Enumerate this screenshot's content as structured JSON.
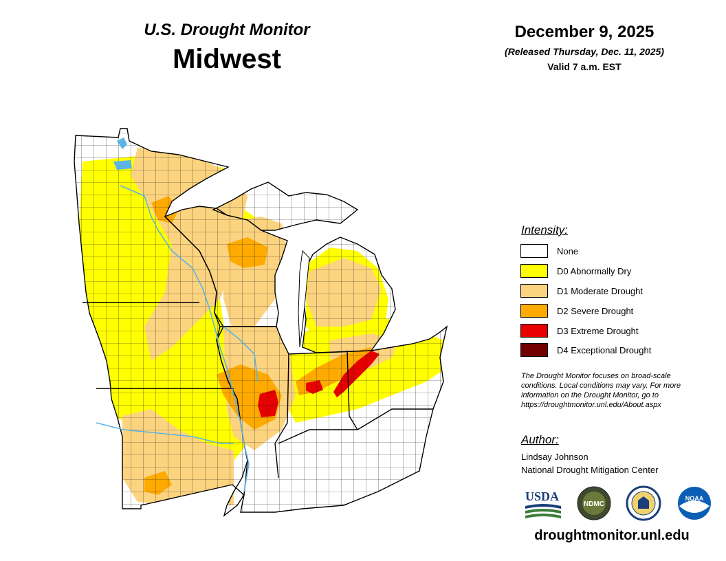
{
  "header": {
    "title": "U.S. Drought Monitor",
    "region": "Midwest"
  },
  "dates": {
    "map_date": "December 9, 2025",
    "released": "(Released Thursday, Dec. 11, 2025)",
    "valid": "Valid 7 a.m. EST"
  },
  "legend": {
    "title": "Intensity:",
    "items": [
      {
        "label": "None",
        "color": "#ffffff"
      },
      {
        "label": "D0 Abnormally Dry",
        "color": "#ffff00"
      },
      {
        "label": "D1 Moderate Drought",
        "color": "#fcd37f"
      },
      {
        "label": "D2 Severe Drought",
        "color": "#ffaa00"
      },
      {
        "label": "D3 Extreme Drought",
        "color": "#e60000"
      },
      {
        "label": "D4 Exceptional Drought",
        "color": "#730000"
      }
    ]
  },
  "note": {
    "line1": "The Drought Monitor focuses on broad-scale",
    "line2": "conditions. Local conditions may vary. For more",
    "line3": "information on the Drought Monitor, go to",
    "line4": "https://droughtmonitor.unl.edu/About.aspx"
  },
  "author": {
    "title": "Author:",
    "name": "Lindsay Johnson",
    "org": "National Drought Mitigation Center"
  },
  "logos": {
    "usda": "USDA",
    "ndmc": "NDMC",
    "noaa": "NOAA"
  },
  "site": "droughtmonitor.unl.edu",
  "colors": {
    "water": "#5ab4e6",
    "border": "#000000",
    "county": "#333333"
  }
}
